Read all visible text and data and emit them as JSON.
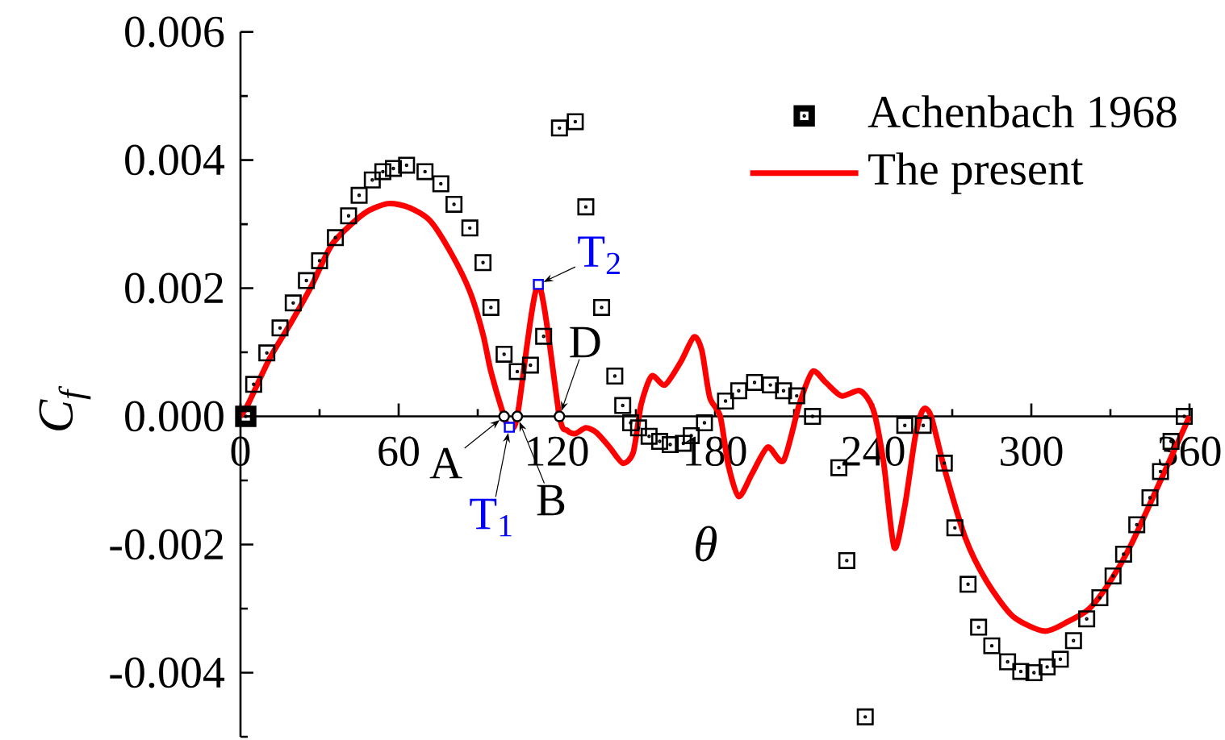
{
  "chart_data": {
    "type": "scatter",
    "xlabel": "θ",
    "ylabel": "C$_{f}$",
    "xlim": [
      0,
      360
    ],
    "ylim": [
      -0.005,
      0.006
    ],
    "xticks": [
      0,
      {
        "value": 30,
        "label": null
      },
      60,
      {
        "value": 90,
        "label": null
      },
      120,
      {
        "value": 150,
        "label": null
      },
      180,
      {
        "value": 210,
        "label": null
      },
      240,
      {
        "value": 270,
        "label": null
      },
      300,
      {
        "value": 330,
        "label": null
      },
      360
    ],
    "yticks": [
      {
        "value": -0.005,
        "label": null
      },
      -0.004,
      {
        "value": -0.003,
        "label": null
      },
      -0.002,
      {
        "value": -0.001,
        "label": null
      },
      {
        "value": 0,
        "label": "0.000"
      },
      {
        "value": 0.001,
        "label": null
      },
      0.002,
      {
        "value": 0.003,
        "label": null
      },
      0.004,
      {
        "value": 0.005,
        "label": null
      },
      0.006
    ],
    "legend": "top right",
    "series": [
      {
        "name": "Achenbach 1968",
        "color": "#000000",
        "marker": "square",
        "x": [
          2,
          5,
          10,
          15,
          20,
          25,
          30,
          36,
          41,
          45,
          50,
          54,
          58,
          63,
          70,
          76,
          81,
          87,
          92,
          95,
          100,
          105,
          110,
          115,
          121,
          127,
          131,
          137,
          142,
          145,
          148,
          151,
          155,
          159,
          163,
          168,
          171,
          176,
          184,
          189,
          195,
          201,
          206,
          211,
          217,
          227,
          230,
          237,
          252,
          259,
          267,
          271,
          276,
          280,
          285,
          291,
          296,
          301,
          306,
          311,
          316,
          321,
          326,
          331,
          335,
          340,
          345,
          349,
          353,
          358
        ],
        "values": [
          0.0,
          0.0005,
          0.00099,
          0.00138,
          0.00177,
          0.00212,
          0.00243,
          0.00279,
          0.00313,
          0.00345,
          0.00369,
          0.00382,
          0.00387,
          0.00392,
          0.00382,
          0.00363,
          0.00331,
          0.00294,
          0.0024,
          0.0017,
          0.00097,
          0.0007,
          0.0008,
          0.00125,
          0.0045,
          0.0046,
          0.00327,
          0.0017,
          0.00063,
          0.00017,
          -0.0001,
          -0.00018,
          -0.00031,
          -0.00039,
          -0.00044,
          -0.00042,
          -0.0003,
          -0.0001,
          0.00024,
          0.0004,
          0.00053,
          0.00049,
          0.0004,
          0.00032,
          0.0,
          -0.0008,
          -0.00225,
          -0.00469,
          -0.00014,
          -0.00014,
          -0.00073,
          -0.00174,
          -0.00262,
          -0.00329,
          -0.00358,
          -0.00383,
          -0.00398,
          -0.004,
          -0.00391,
          -0.00379,
          -0.0035,
          -0.00316,
          -0.00283,
          -0.00249,
          -0.00215,
          -0.00169,
          -0.00127,
          -0.00086,
          -0.00039,
          0.0
        ]
      },
      {
        "name": "The present",
        "type": "line",
        "color": "#ff0000",
        "marker": "none",
        "line_style": "solid",
        "x": [
          0,
          3,
          11,
          19,
          27,
          35,
          47,
          56,
          64,
          72,
          80,
          87,
          92,
          95,
          100,
          102,
          105,
          113,
          121,
          124,
          127,
          131,
          135,
          140,
          145,
          149,
          152,
          156,
          161,
          167,
          172,
          175,
          178,
          182,
          185,
          189,
          194,
          200,
          206,
          212,
          217,
          222,
          228,
          235,
          240,
          244,
          248,
          252,
          256,
          259,
          262,
          267,
          275,
          283,
          293,
          305,
          314,
          322,
          330,
          338,
          352,
          360
        ],
        "values": [
          0,
          0.0002,
          0.0009,
          0.00145,
          0.00204,
          0.0027,
          0.00317,
          0.00332,
          0.00326,
          0.00305,
          0.00254,
          0.00195,
          0.00128,
          0.0007,
          0,
          -0.00017,
          0,
          0.00206,
          0,
          -0.00022,
          -0.00027,
          -0.00018,
          -0.00025,
          -0.00048,
          -0.00073,
          -0.00056,
          0.00019,
          0.00063,
          0.00049,
          0.00085,
          0.00124,
          0.00103,
          0.0003,
          0.0,
          -0.00075,
          -0.00125,
          -0.0009,
          -0.00048,
          -0.00069,
          0.00019,
          0.0007,
          0.00053,
          0.00032,
          0.0004,
          0.00011,
          -0.00073,
          -0.00205,
          -0.0014,
          -0.00031,
          0.00011,
          0.0,
          -0.00081,
          -0.0019,
          -0.00257,
          -0.00312,
          -0.00335,
          -0.0032,
          -0.003,
          -0.00257,
          -0.00199,
          -0.00073,
          0
        ]
      },
      {
        "color": "#000000",
        "marker": "circle",
        "x": [
          100,
          105,
          121
        ],
        "values": [
          0,
          0,
          0
        ]
      },
      {
        "color": "#0000ff",
        "marker": "square",
        "x": [
          102,
          113
        ],
        "values": [
          -0.00017,
          0.00206
        ]
      }
    ],
    "annotations": [
      {
        "text": "A",
        "x": 100,
        "y": 0
      },
      {
        "text": "T$_{1}$",
        "x": 102,
        "y": -0.00017
      },
      {
        "text": "B",
        "x": 105,
        "y": 0
      },
      {
        "text": "T$_{2}$",
        "x": 113,
        "y": 0.00206
      },
      {
        "text": "D",
        "x": 121,
        "y": 0
      }
    ]
  }
}
